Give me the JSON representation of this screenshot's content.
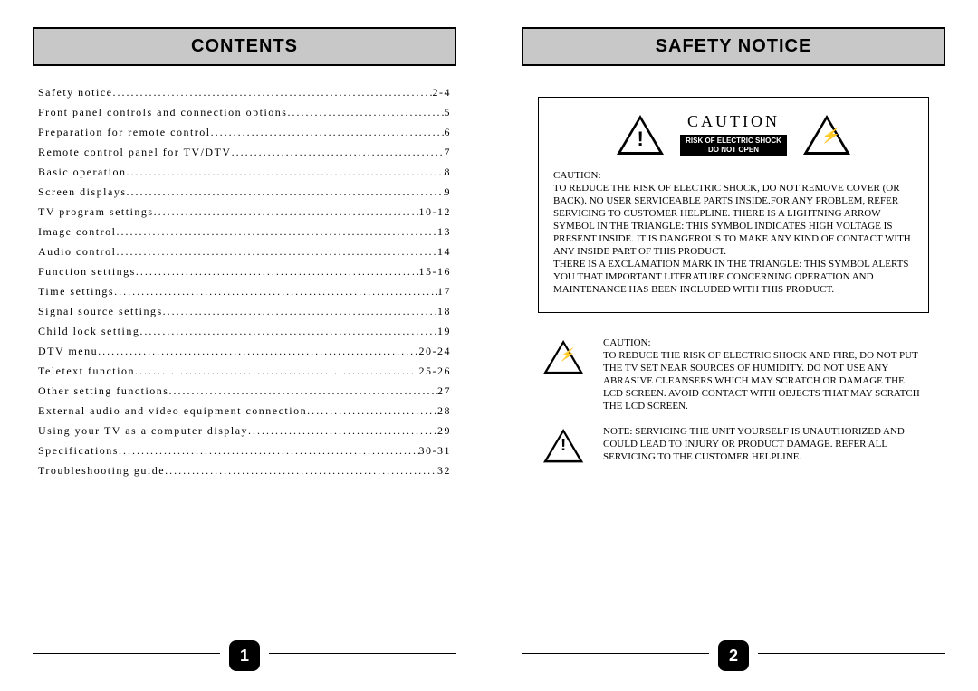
{
  "left": {
    "title": "CONTENTS",
    "toc": [
      {
        "label": "Safety notice",
        "page": "2-4"
      },
      {
        "label": "Front panel controls and connection options",
        "page": "5"
      },
      {
        "label": "Preparation for remote control",
        "page": "6"
      },
      {
        "label": "Remote control panel for TV/DTV",
        "page": "7"
      },
      {
        "label": "Basic operation",
        "page": "8"
      },
      {
        "label": "Screen displays",
        "page": "9"
      },
      {
        "label": "TV program settings",
        "page": "10-12"
      },
      {
        "label": "Image control",
        "page": "13"
      },
      {
        "label": "Audio control",
        "page": "14"
      },
      {
        "label": "Function settings",
        "page": "15-16"
      },
      {
        "label": "Time settings",
        "page": "17"
      },
      {
        "label": "Signal source settings",
        "page": "18"
      },
      {
        "label": "Child lock setting",
        "page": "19"
      },
      {
        "label": "DTV menu",
        "page": "20-24"
      },
      {
        "label": "Teletext function",
        "page": "25-26"
      },
      {
        "label": "Other setting functions",
        "page": "27"
      },
      {
        "label": "External audio and video equipment connection",
        "page": "28"
      },
      {
        "label": "Using your TV as a computer display",
        "page": "29"
      },
      {
        "label": "Specifications",
        "page": "30-31"
      },
      {
        "label": "Troubleshooting guide",
        "page": "32"
      }
    ],
    "pageNumber": "1"
  },
  "right": {
    "title": "SAFETY NOTICE",
    "caution": {
      "heading": "CAUTION",
      "risk1": "RISK OF ELECTRIC SHOCK",
      "risk2": "DO NOT OPEN",
      "bodyLabel": "CAUTION:",
      "body": "TO REDUCE THE RISK OF ELECTRIC SHOCK, DO NOT REMOVE COVER (OR BACK). NO USER SERVICEABLE PARTS INSIDE.FOR ANY PROBLEM, REFER SERVICING TO CUSTOMER HELPLINE. THERE IS A LIGHTNING ARROW SYMBOL IN THE TRIANGLE: THIS SYMBOL INDICATES HIGH VOLTAGE IS PRESENT INSIDE. IT IS DANGEROUS TO MAKE ANY KIND OF CONTACT WITH ANY INSIDE PART OF THIS PRODUCT.\nTHERE IS A EXCLAMATION MARK IN THE TRIANGLE: THIS SYMBOL ALERTS YOU THAT IMPORTANT LITERATURE CONCERNING OPERATION AND MAINTENANCE HAS BEEN INCLUDED WITH THIS PRODUCT."
    },
    "warn1": {
      "label": "CAUTION:",
      "text": "TO REDUCE THE RISK OF ELECTRIC SHOCK AND FIRE, DO NOT PUT THE TV SET NEAR SOURCES OF HUMIDITY. DO NOT USE ANY ABRASIVE CLEANSERS WHICH MAY SCRATCH OR DAMAGE THE LCD SCREEN. AVOID CONTACT WITH OBJECTS THAT MAY SCRATCH THE LCD SCREEN."
    },
    "warn2": {
      "text": "NOTE: SERVICING THE UNIT YOURSELF IS UNAUTHORIZED AND COULD LEAD TO INJURY OR PRODUCT DAMAGE. REFER ALL SERVICING TO THE CUSTOMER HELPLINE."
    },
    "pageNumber": "2"
  },
  "style": {
    "header_bg": "#c8c8c8",
    "header_border": "#000000",
    "text_color": "#000000",
    "pagenum_bg": "#000000",
    "caution_title_fontsize": 18,
    "body_fontsize": 11,
    "toc_fontsize": 12
  }
}
